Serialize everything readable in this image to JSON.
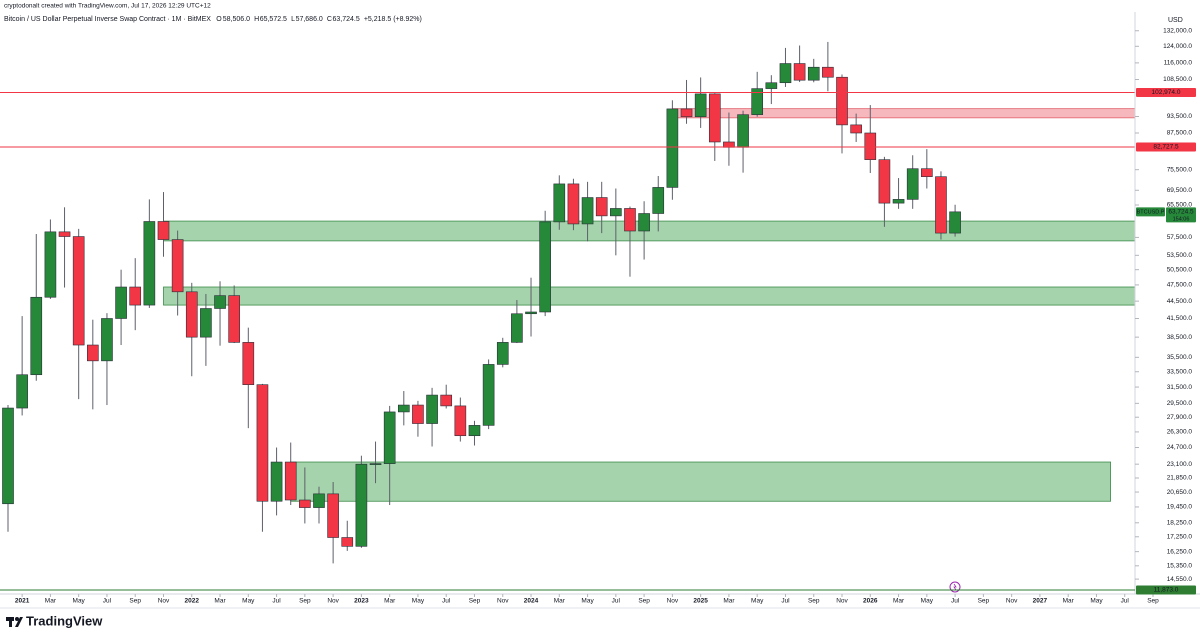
{
  "chart_data": {
    "type": "candlestick",
    "credit": "cryptodonalt created with TradingView.com, Jul 17, 2026 12:29 UTC+12",
    "title": "Bitcoin / US Dollar Perpetual Inverse Swap Contract · 1M · BitMEX",
    "ohlc_legend": [
      {
        "key": "O",
        "value": "58,506.0"
      },
      {
        "key": "H",
        "value": "65,572.5"
      },
      {
        "key": "L",
        "value": "57,686.0"
      },
      {
        "key": "C",
        "value": "63,724.5"
      }
    ],
    "change": "+5,218.5 (+8.92%)",
    "currency": "USD",
    "brand": "TradingView",
    "log_scale": true,
    "grid": false,
    "up_color": "#26893a",
    "down_color": "#f23645",
    "wick_color": "#5d606b",
    "x": [
      "2020-12",
      "2021-01",
      "2021-02",
      "2021-03",
      "2021-04",
      "2021-05",
      "2021-06",
      "2021-07",
      "2021-08",
      "2021-09",
      "2021-10",
      "2021-11",
      "2021-12",
      "2022-01",
      "2022-02",
      "2022-03",
      "2022-04",
      "2022-05",
      "2022-06",
      "2022-07",
      "2022-08",
      "2022-09",
      "2022-10",
      "2022-11",
      "2022-12",
      "2023-01",
      "2023-02",
      "2023-03",
      "2023-04",
      "2023-05",
      "2023-06",
      "2023-07",
      "2023-08",
      "2023-09",
      "2023-10",
      "2023-11",
      "2023-12",
      "2024-01",
      "2024-02",
      "2024-03",
      "2024-04",
      "2024-05",
      "2024-06",
      "2024-07",
      "2024-08",
      "2024-09",
      "2024-10",
      "2024-11",
      "2024-12",
      "2025-01",
      "2025-02",
      "2025-03",
      "2025-04",
      "2025-05",
      "2025-06",
      "2025-07",
      "2025-08",
      "2025-09",
      "2025-10",
      "2025-11",
      "2025-12",
      "2026-01",
      "2026-02",
      "2026-03",
      "2026-04",
      "2026-05",
      "2026-06",
      "2026-07"
    ],
    "open": [
      19700,
      28950,
      33100,
      45200,
      58800,
      57700,
      37300,
      35000,
      41500,
      47100,
      43800,
      61300,
      57000,
      46200,
      38500,
      43200,
      45500,
      37700,
      31800,
      19900,
      23300,
      20000,
      19400,
      20500,
      17200,
      16600,
      23100,
      23150,
      28500,
      29300,
      27200,
      30500,
      29200,
      25900,
      27000,
      34500,
      37700,
      42300,
      42600,
      61200,
      71300,
      60700,
      67500,
      62700,
      64600,
      59000,
      63300,
      70300,
      96400,
      93400,
      102400,
      84400,
      82600,
      94200,
      104600,
      107100,
      115700,
      108200,
      114000,
      109500,
      90400,
      87500,
      78600,
      66000,
      67000,
      75800,
      73400,
      58506
    ],
    "high": [
      29300,
      41900,
      58300,
      61800,
      64900,
      59500,
      41300,
      42400,
      50500,
      52900,
      67000,
      69000,
      59100,
      47900,
      45800,
      48200,
      47400,
      40000,
      31900,
      24700,
      25200,
      22800,
      21100,
      21500,
      18400,
      23900,
      25300,
      29200,
      31000,
      29800,
      31400,
      31800,
      30200,
      27500,
      35200,
      38400,
      44700,
      48900,
      64000,
      73800,
      72800,
      71900,
      71900,
      70000,
      65100,
      66500,
      73600,
      99800,
      108300,
      109400,
      102700,
      95000,
      95700,
      111900,
      110400,
      123200,
      124400,
      117900,
      126200,
      110700,
      94600,
      97900,
      79500,
      73000,
      80000,
      82000,
      75000,
      65572.5
    ],
    "low": [
      17600,
      28100,
      32300,
      44900,
      47000,
      30000,
      28800,
      29300,
      37300,
      39600,
      43300,
      53200,
      42000,
      32900,
      34300,
      37200,
      37600,
      26700,
      17600,
      18800,
      19600,
      18200,
      18200,
      15500,
      16300,
      16500,
      21400,
      19600,
      27000,
      25800,
      24800,
      28900,
      25300,
      24900,
      26600,
      34100,
      37600,
      38600,
      41900,
      59300,
      59200,
      56600,
      58500,
      53500,
      49100,
      52600,
      58900,
      66900,
      90800,
      89300,
      78200,
      76700,
      74600,
      93400,
      98300,
      105300,
      107400,
      107300,
      103500,
      80600,
      84400,
      74500,
      60000,
      64500,
      64500,
      70000,
      57000,
      57686
    ],
    "close": [
      28950,
      33100,
      45200,
      58800,
      57700,
      37300,
      35000,
      41500,
      47100,
      43800,
      61300,
      57000,
      46200,
      38500,
      43200,
      45500,
      37700,
      31800,
      19900,
      23300,
      20000,
      19400,
      20500,
      17200,
      16600,
      23100,
      23150,
      28500,
      29300,
      27200,
      30500,
      29200,
      25900,
      27000,
      34500,
      37700,
      42300,
      42600,
      61200,
      71300,
      60700,
      67500,
      62700,
      64600,
      59000,
      63300,
      70300,
      96400,
      93400,
      102400,
      84400,
      82600,
      94200,
      104600,
      107100,
      115700,
      108200,
      114000,
      109500,
      90400,
      87500,
      78600,
      66000,
      67000,
      75800,
      73400,
      58506,
      63724.5
    ],
    "zones": [
      {
        "y0": 93000,
        "y1": 96500,
        "x0": "2024-11",
        "x1": "2027-09",
        "color": "#f7b8bd",
        "border": "#e0616b"
      },
      {
        "y0": 56700,
        "y1": 61400,
        "x0": "2021-11",
        "x1": "2027-09",
        "color": "#a5d3ab",
        "border": "#3c8c4a"
      },
      {
        "y0": 43800,
        "y1": 47100,
        "x0": "2021-11",
        "x1": "2027-09",
        "color": "#a5d3ab",
        "border": "#3c8c4a"
      },
      {
        "y0": 19900,
        "y1": 23300,
        "x0": "2022-08",
        "x1": "2027-06",
        "color": "#a5d3ab",
        "border": "#3c8c4a"
      }
    ],
    "price_lines": [
      {
        "value": 102974,
        "label": "102,974.0",
        "color": "#f23645"
      },
      {
        "value": 82727.5,
        "label": "82,727.5",
        "color": "#f23645"
      },
      {
        "value": 11873,
        "label": "11,873.0",
        "color": "#2e7d32"
      }
    ],
    "last_price": {
      "name": "BTCUSD.P",
      "value": 63724.5,
      "label": "63,724.5",
      "countdown": "154:06",
      "color": "#26893a"
    },
    "xlim": [
      "2020-12",
      "2027-09"
    ],
    "xticks": [
      {
        "value": "2021-01",
        "label": "2021"
      },
      "Mar",
      "May",
      "Jul",
      "Sep",
      "Nov",
      {
        "value": "2022-01",
        "label": "2022"
      },
      "Mar",
      "May",
      "Jul",
      "Sep",
      "Nov",
      {
        "value": "2023-01",
        "label": "2023"
      },
      "Mar",
      "May",
      "Jul",
      "Sep",
      "Nov",
      {
        "value": "2024-01",
        "label": "2024"
      },
      "Mar",
      "May",
      "Jul",
      "Sep",
      "Nov",
      {
        "value": "2025-01",
        "label": "2025"
      },
      "Mar",
      "May",
      "Jul",
      "Sep",
      "Nov",
      {
        "value": "2026-01",
        "label": "2026"
      },
      "Mar",
      "May",
      "Jul",
      "Sep",
      "Nov",
      {
        "value": "2027-01",
        "label": "2027"
      },
      "Mar",
      "May",
      "Jul",
      "Sep"
    ],
    "ylim": [
      13760,
      141200
    ],
    "yticks": [
      {
        "value": 132000,
        "label": "132,000.0"
      },
      {
        "value": 124000,
        "label": "124,000.0"
      },
      {
        "value": 116000,
        "label": "116,000.0"
      },
      {
        "value": 108500,
        "label": "108,500.0"
      },
      {
        "value": 93500,
        "label": "93,500.0"
      },
      {
        "value": 87500,
        "label": "87,500.0"
      },
      {
        "value": 75500,
        "label": "75,500.0"
      },
      {
        "value": 69500,
        "label": "69,500.0"
      },
      {
        "value": 65500,
        "label": "65,500.0"
      },
      {
        "value": 57500,
        "label": "57,500.0"
      },
      {
        "value": 53500,
        "label": "53,500.0"
      },
      {
        "value": 50500,
        "label": "50,500.0"
      },
      {
        "value": 47500,
        "label": "47,500.0"
      },
      {
        "value": 44500,
        "label": "44,500.0"
      },
      {
        "value": 41500,
        "label": "41,500.0"
      },
      {
        "value": 38500,
        "label": "38,500.0"
      },
      {
        "value": 35500,
        "label": "35,500.0"
      },
      {
        "value": 33500,
        "label": "33,500.0"
      },
      {
        "value": 31500,
        "label": "31,500.0"
      },
      {
        "value": 29500,
        "label": "29,500.0"
      },
      {
        "value": 27900,
        "label": "27,900.0"
      },
      {
        "value": 26300,
        "label": "26,300.0"
      },
      {
        "value": 24700,
        "label": "24,700.0"
      },
      {
        "value": 23100,
        "label": "23,100.0"
      },
      {
        "value": 21850,
        "label": "21,850.0"
      },
      {
        "value": 20650,
        "label": "20,650.0"
      },
      {
        "value": 19450,
        "label": "19,450.0"
      },
      {
        "value": 18250,
        "label": "18,250.0"
      },
      {
        "value": 17250,
        "label": "17,250.0"
      },
      {
        "value": 16250,
        "label": "16,250.0"
      },
      {
        "value": 15350,
        "label": "15,350.0"
      },
      {
        "value": 14550,
        "label": "14,550.0"
      }
    ]
  }
}
